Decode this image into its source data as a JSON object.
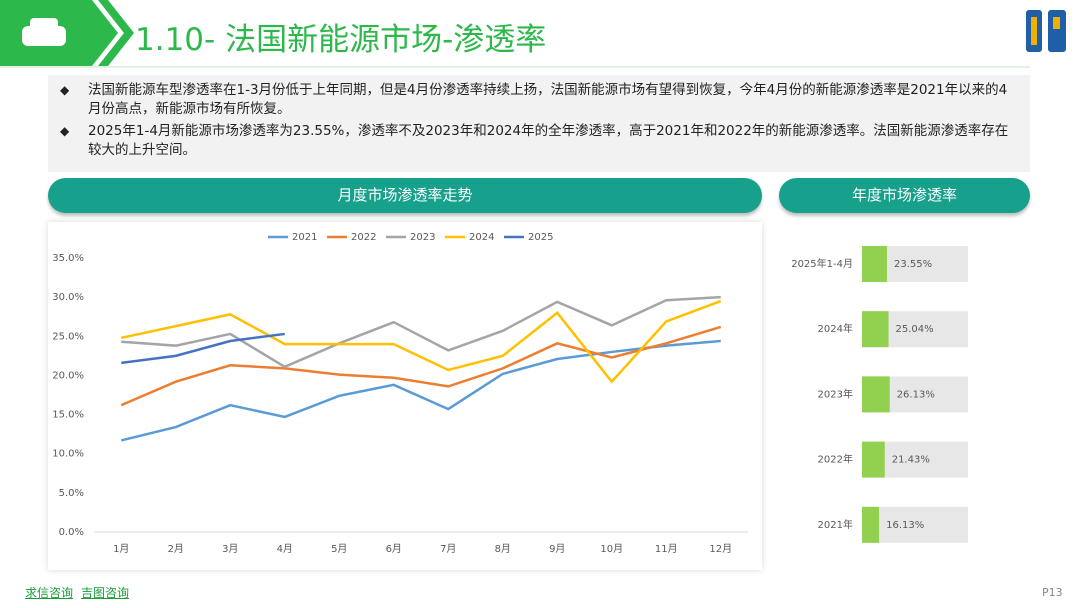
{
  "header": {
    "title": "1.10- 法国新能源市场-渗透率"
  },
  "bullets": [
    "法国新能源车型渗透率在1-3月份低于上年同期，但是4月份渗透率持续上扬，法国新能源市场有望得到恢复，今年4月份的新能源渗透率是2021年以来的4月份高点，新能源市场有所恢复。",
    "2025年1-4月新能源市场渗透率为23.55%，渗透率不及2023年和2024年的全年渗透率，高于2021年和2022年的新能源渗透率。法国新能源渗透率存在较大的上升空间。"
  ],
  "chart_data": [
    {
      "type": "line",
      "title": "月度市场渗透率走势",
      "categories": [
        "1月",
        "2月",
        "3月",
        "4月",
        "5月",
        "6月",
        "7月",
        "8月",
        "9月",
        "10月",
        "11月",
        "12月"
      ],
      "series": [
        {
          "name": "2021",
          "color": "#5b9bd5",
          "values": [
            11.7,
            13.4,
            16.2,
            14.7,
            17.4,
            18.8,
            15.7,
            20.2,
            22.1,
            23.0,
            23.8,
            24.4
          ]
        },
        {
          "name": "2022",
          "color": "#ed7d31",
          "values": [
            16.2,
            19.2,
            21.3,
            20.9,
            20.1,
            19.7,
            18.6,
            20.9,
            24.1,
            22.3,
            24.1,
            26.2
          ]
        },
        {
          "name": "2023",
          "color": "#a5a5a5",
          "values": [
            24.3,
            23.8,
            25.3,
            21.1,
            24.1,
            26.8,
            23.2,
            25.7,
            29.4,
            26.4,
            29.6,
            30.0
          ]
        },
        {
          "name": "2024",
          "color": "#ffc000",
          "values": [
            24.8,
            26.3,
            27.8,
            24.0,
            24.0,
            24.0,
            20.7,
            22.5,
            28.0,
            19.2,
            26.9,
            29.5
          ]
        },
        {
          "name": "2025",
          "color": "#4472c4",
          "values": [
            21.6,
            22.5,
            24.4,
            25.3,
            null,
            null,
            null,
            null,
            null,
            null,
            null,
            null
          ]
        }
      ],
      "ylim": [
        0,
        35
      ],
      "yticks": [
        {
          "value": 0,
          "label": "0.0%"
        },
        {
          "value": 5,
          "label": "5.0%"
        },
        {
          "value": 10,
          "label": "10.0%"
        },
        {
          "value": 15,
          "label": "15.0%"
        },
        {
          "value": 20,
          "label": "20.0%"
        },
        {
          "value": 25,
          "label": "25.0%"
        },
        {
          "value": 30,
          "label": "30.0%"
        },
        {
          "value": 35,
          "label": "35.0%"
        }
      ],
      "legend": "top"
    },
    {
      "type": "hbar",
      "title": "年度市场渗透率",
      "categories": [
        "2025年1-4月",
        "2024年",
        "2023年",
        "2022年",
        "2021年"
      ],
      "values": [
        23.55,
        25.04,
        26.13,
        21.43,
        16.13
      ],
      "value_labels": [
        "23.55%",
        "25.04%",
        "26.13%",
        "21.43%",
        "16.13%"
      ],
      "color": "#92d050",
      "xlim": [
        0,
        100
      ]
    }
  ],
  "footer": {
    "links": [
      "求信咨询",
      "吉图咨询"
    ],
    "page": "P13"
  }
}
